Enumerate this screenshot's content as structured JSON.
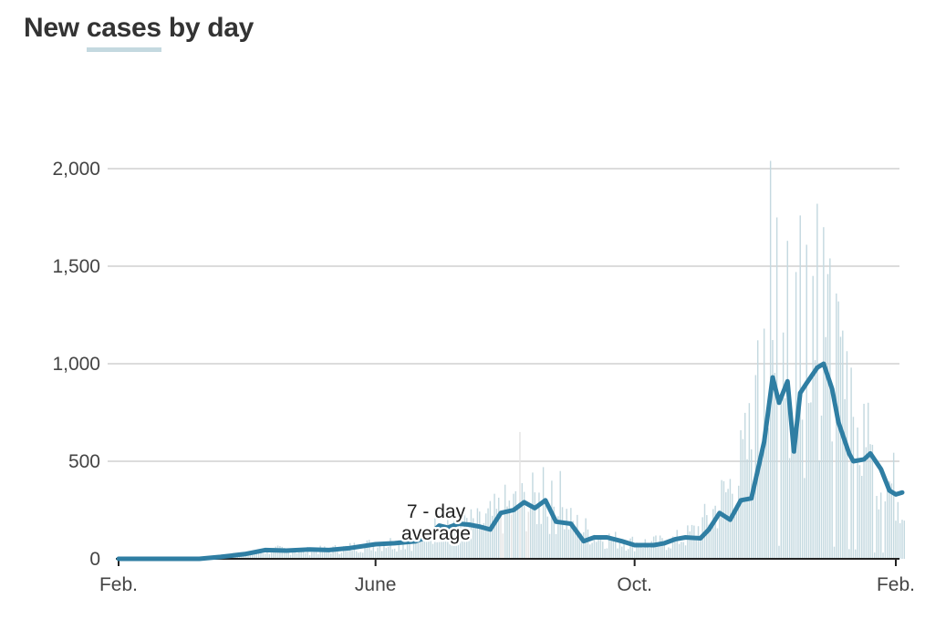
{
  "title": {
    "part1": "New",
    "highlight": "cases",
    "part2": "by day"
  },
  "colors": {
    "bar": "#c4d9e0",
    "bar_faint": "#e4e4e4",
    "line": "#2f7ea3",
    "grid": "#d0d0d0",
    "axis": "#222222",
    "title_underline": "#c4d9e0"
  },
  "chart_data": {
    "type": "bar",
    "x_start": "2020-02-01",
    "x_end": "2021-02-05",
    "xticks": [
      {
        "label": "Feb.",
        "date": "2020-02-01"
      },
      {
        "label": "June",
        "date": "2020-06-01"
      },
      {
        "label": "Oct.",
        "date": "2020-10-01"
      },
      {
        "label": "Feb.",
        "date": "2021-02-01"
      }
    ],
    "ylim": [
      0,
      2000
    ],
    "yticks": [
      {
        "label": "0",
        "value": 0
      },
      {
        "label": "500",
        "value": 500
      },
      {
        "label": "1,000",
        "value": 1000
      },
      {
        "label": "1,500",
        "value": 1500
      },
      {
        "label": "2,000",
        "value": 2000
      }
    ],
    "grid": true,
    "annotation": {
      "line1": "7 - day",
      "line2": "average",
      "date": "2020-06-20"
    },
    "daily_cases_anchors": [
      [
        "2020-02-01",
        0
      ],
      [
        "2020-03-10",
        0
      ],
      [
        "2020-03-20",
        8
      ],
      [
        "2020-04-01",
        25
      ],
      [
        "2020-04-15",
        45
      ],
      [
        "2020-05-01",
        40
      ],
      [
        "2020-05-15",
        50
      ],
      [
        "2020-06-01",
        75
      ],
      [
        "2020-06-20",
        90
      ],
      [
        "2020-07-05",
        190
      ],
      [
        "2020-07-20",
        170
      ],
      [
        "2020-08-01",
        250
      ],
      [
        "2020-08-15",
        290
      ],
      [
        "2020-08-25",
        260
      ],
      [
        "2020-09-01",
        180
      ],
      [
        "2020-09-15",
        110
      ],
      [
        "2020-09-25",
        90
      ],
      [
        "2020-10-01",
        80
      ],
      [
        "2020-10-15",
        80
      ],
      [
        "2020-10-25",
        110
      ],
      [
        "2020-11-01",
        160
      ],
      [
        "2020-11-10",
        280
      ],
      [
        "2020-11-20",
        450
      ],
      [
        "2020-12-01",
        780
      ],
      [
        "2020-12-10",
        900
      ],
      [
        "2020-12-15",
        600
      ],
      [
        "2020-12-25",
        900
      ],
      [
        "2021-01-01",
        980
      ],
      [
        "2021-01-08",
        760
      ],
      [
        "2021-01-15",
        560
      ],
      [
        "2021-01-25",
        420
      ],
      [
        "2021-02-05",
        320
      ]
    ],
    "daily_cases_spikes": [
      [
        "2020-08-08",
        650
      ],
      [
        "2020-08-19",
        470
      ],
      [
        "2020-08-27",
        450
      ],
      [
        "2020-11-28",
        1120
      ],
      [
        "2020-12-01",
        1180
      ],
      [
        "2020-12-04",
        2040
      ],
      [
        "2020-12-07",
        1750
      ],
      [
        "2020-12-10",
        1160
      ],
      [
        "2020-12-12",
        1630
      ],
      [
        "2020-12-16",
        1470
      ],
      [
        "2020-12-18",
        1760
      ],
      [
        "2020-12-21",
        1610
      ],
      [
        "2020-12-24",
        1450
      ],
      [
        "2020-12-26",
        1820
      ],
      [
        "2020-12-29",
        1700
      ],
      [
        "2021-01-01",
        1540
      ],
      [
        "2021-01-04",
        1360
      ],
      [
        "2021-01-07",
        1170
      ],
      [
        "2021-01-11",
        980
      ],
      [
        "2021-01-19",
        800
      ]
    ],
    "seven_day_average": [
      [
        "2020-02-01",
        0
      ],
      [
        "2020-03-10",
        0
      ],
      [
        "2020-03-20",
        10
      ],
      [
        "2020-04-01",
        25
      ],
      [
        "2020-04-10",
        45
      ],
      [
        "2020-04-20",
        42
      ],
      [
        "2020-05-01",
        48
      ],
      [
        "2020-05-10",
        45
      ],
      [
        "2020-05-20",
        55
      ],
      [
        "2020-06-01",
        75
      ],
      [
        "2020-06-10",
        80
      ],
      [
        "2020-06-20",
        90
      ],
      [
        "2020-06-25",
        110
      ],
      [
        "2020-07-01",
        170
      ],
      [
        "2020-07-05",
        160
      ],
      [
        "2020-07-10",
        180
      ],
      [
        "2020-07-15",
        175
      ],
      [
        "2020-07-20",
        165
      ],
      [
        "2020-07-25",
        150
      ],
      [
        "2020-07-30",
        235
      ],
      [
        "2020-08-05",
        250
      ],
      [
        "2020-08-10",
        290
      ],
      [
        "2020-08-15",
        260
      ],
      [
        "2020-08-20",
        300
      ],
      [
        "2020-08-25",
        190
      ],
      [
        "2020-09-01",
        180
      ],
      [
        "2020-09-07",
        90
      ],
      [
        "2020-09-12",
        110
      ],
      [
        "2020-09-18",
        110
      ],
      [
        "2020-09-25",
        90
      ],
      [
        "2020-10-01",
        70
      ],
      [
        "2020-10-10",
        70
      ],
      [
        "2020-10-15",
        80
      ],
      [
        "2020-10-20",
        100
      ],
      [
        "2020-10-25",
        110
      ],
      [
        "2020-11-01",
        105
      ],
      [
        "2020-11-05",
        150
      ],
      [
        "2020-11-10",
        235
      ],
      [
        "2020-11-15",
        200
      ],
      [
        "2020-11-20",
        300
      ],
      [
        "2020-11-25",
        310
      ],
      [
        "2020-12-01",
        600
      ],
      [
        "2020-12-05",
        930
      ],
      [
        "2020-12-08",
        800
      ],
      [
        "2020-12-12",
        910
      ],
      [
        "2020-12-15",
        550
      ],
      [
        "2020-12-18",
        850
      ],
      [
        "2020-12-21",
        900
      ],
      [
        "2020-12-26",
        980
      ],
      [
        "2020-12-29",
        1000
      ],
      [
        "2021-01-02",
        870
      ],
      [
        "2021-01-05",
        700
      ],
      [
        "2021-01-10",
        540
      ],
      [
        "2021-01-12",
        500
      ],
      [
        "2021-01-17",
        510
      ],
      [
        "2021-01-20",
        540
      ],
      [
        "2021-01-25",
        460
      ],
      [
        "2021-01-29",
        350
      ],
      [
        "2021-02-01",
        330
      ],
      [
        "2021-02-04",
        340
      ]
    ]
  }
}
